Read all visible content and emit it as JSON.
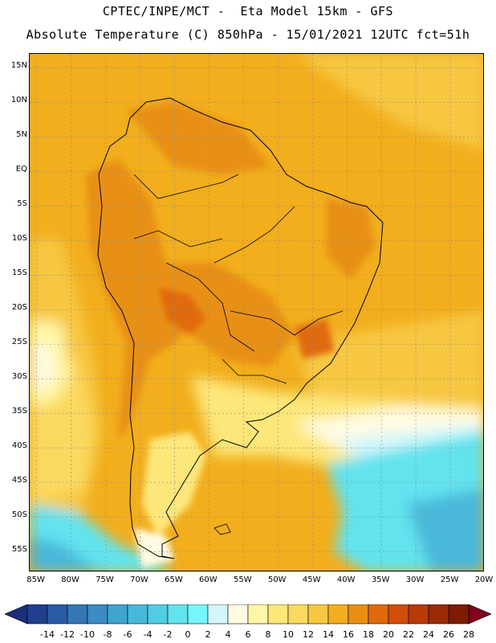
{
  "header": {
    "line1": "CPTEC/INPE/MCT -  Eta Model 15km - GFS",
    "line2": "Absolute Temperature (C) 850hPa - 15/01/2021 12UTC fct=51h"
  },
  "map": {
    "lat_labels": [
      "15N",
      "10N",
      "5N",
      "EQ",
      "5S",
      "10S",
      "15S",
      "20S",
      "25S",
      "30S",
      "35S",
      "40S",
      "45S",
      "50S",
      "55S"
    ],
    "lon_labels": [
      "85W",
      "80W",
      "75W",
      "70W",
      "65W",
      "60W",
      "55W",
      "50W",
      "45W",
      "40W",
      "35W",
      "30W",
      "25W",
      "20W"
    ],
    "lat_range": [
      -58,
      17
    ],
    "lon_range": [
      -86,
      -20
    ],
    "grid": true
  },
  "colorbar": {
    "labels": [
      "-14",
      "-12",
      "-10",
      "-8",
      "-6",
      "-4",
      "-2",
      "0",
      "2",
      "4",
      "6",
      "8",
      "10",
      "12",
      "14",
      "16",
      "18",
      "20",
      "22",
      "24",
      "26",
      "28"
    ],
    "colors": [
      "#1f3f8f",
      "#2a5ca6",
      "#3377b5",
      "#3a8cc2",
      "#40a4cf",
      "#48b8da",
      "#52cbe3",
      "#62e3ee",
      "#78f5fb",
      "#d2f6fb",
      "#fffbe2",
      "#fff6a8",
      "#fde77a",
      "#fbd95e",
      "#f7c743",
      "#f2ae1c",
      "#e89012",
      "#e06a0b",
      "#d24e08",
      "#b83a06",
      "#9a2a04",
      "#7d1c02"
    ],
    "low_arrow_color": "#1a2f7a",
    "high_arrow_color": "#800020"
  }
}
